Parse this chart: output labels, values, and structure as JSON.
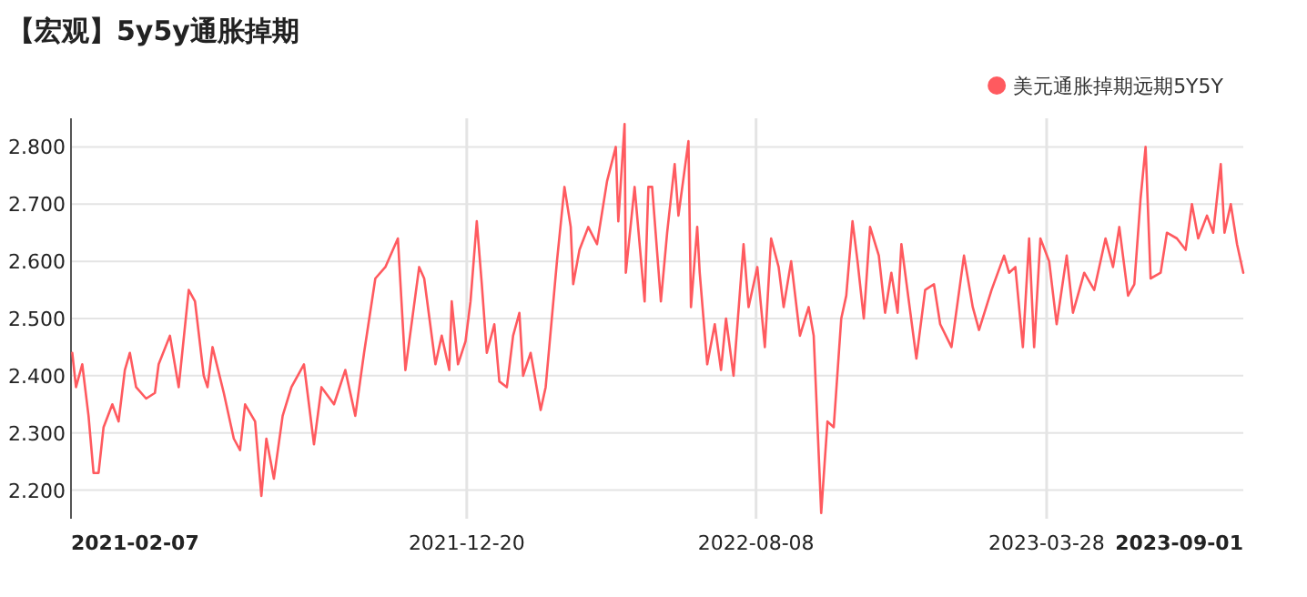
{
  "chart_data": {
    "type": "line",
    "title": "【宏观】5y5y通胀掉期",
    "xlim": [
      "2021-02-07",
      "2023-09-01"
    ],
    "xticks": [
      "2021-02-07",
      "2021-12-20",
      "2022-08-08",
      "2023-03-28",
      "2023-09-01"
    ],
    "ylim": [
      2.15,
      2.85
    ],
    "yticks": [
      {
        "value": 2.2,
        "label": "2.200"
      },
      {
        "value": 2.3,
        "label": "2.300"
      },
      {
        "value": 2.4,
        "label": "2.400"
      },
      {
        "value": 2.5,
        "label": "2.500"
      },
      {
        "value": 2.6,
        "label": "2.600"
      },
      {
        "value": 2.7,
        "label": "2.700"
      },
      {
        "value": 2.8,
        "label": "2.800"
      }
    ],
    "grid": true,
    "legend": "top right",
    "marker": "none",
    "line_style": "solid",
    "series": [
      {
        "name": "美元通胀掉期远期5Y5Y",
        "color": "#ff5a5f",
        "x": [
          "2021-02-08",
          "2021-02-11",
          "2021-02-16",
          "2021-02-21",
          "2021-02-25",
          "2021-03-01",
          "2021-03-05",
          "2021-03-12",
          "2021-03-17",
          "2021-03-22",
          "2021-03-26",
          "2021-03-31",
          "2021-04-08",
          "2021-04-15",
          "2021-04-18",
          "2021-04-27",
          "2021-05-04",
          "2021-05-12",
          "2021-05-17",
          "2021-05-24",
          "2021-05-27",
          "2021-05-31",
          "2021-06-09",
          "2021-06-17",
          "2021-06-22",
          "2021-06-26",
          "2021-07-04",
          "2021-07-09",
          "2021-07-13",
          "2021-07-19",
          "2021-07-26",
          "2021-08-02",
          "2021-08-12",
          "2021-08-20",
          "2021-08-26",
          "2021-09-05",
          "2021-09-14",
          "2021-09-22",
          "2021-09-29",
          "2021-10-08",
          "2021-10-16",
          "2021-10-26",
          "2021-11-01",
          "2021-11-12",
          "2021-11-16",
          "2021-11-25",
          "2021-11-30",
          "2021-12-06",
          "2021-12-08",
          "2021-12-13",
          "2021-12-19",
          "2021-12-23",
          "2021-12-28",
          "2022-01-01",
          "2022-01-05",
          "2022-01-11",
          "2022-01-15",
          "2022-01-21",
          "2022-01-26",
          "2022-01-31",
          "2022-02-03",
          "2022-02-09",
          "2022-02-17",
          "2022-02-21",
          "2022-03-02",
          "2022-03-08",
          "2022-03-13",
          "2022-03-15",
          "2022-03-20",
          "2022-03-27",
          "2022-04-03",
          "2022-04-11",
          "2022-04-18",
          "2022-04-20",
          "2022-04-25",
          "2022-04-26",
          "2022-05-03",
          "2022-05-11",
          "2022-05-14",
          "2022-05-17",
          "2022-05-24",
          "2022-05-29",
          "2022-06-04",
          "2022-06-07",
          "2022-06-15",
          "2022-06-17",
          "2022-06-22",
          "2022-06-24",
          "2022-06-30",
          "2022-07-06",
          "2022-07-11",
          "2022-07-15",
          "2022-07-21",
          "2022-07-29",
          "2022-08-02",
          "2022-08-09",
          "2022-08-15",
          "2022-08-20",
          "2022-08-26",
          "2022-08-30",
          "2022-09-05",
          "2022-09-12",
          "2022-09-19",
          "2022-09-23",
          "2022-09-29",
          "2022-10-04",
          "2022-10-09",
          "2022-10-15",
          "2022-10-19",
          "2022-10-24",
          "2022-10-28",
          "2022-11-02",
          "2022-11-07",
          "2022-11-14",
          "2022-11-19",
          "2022-11-24",
          "2022-11-29",
          "2022-12-02",
          "2022-12-08",
          "2022-12-14",
          "2022-12-21",
          "2022-12-28",
          "2023-01-02",
          "2023-01-11",
          "2023-01-21",
          "2023-01-28",
          "2023-02-02",
          "2023-02-12",
          "2023-02-22",
          "2023-02-26",
          "2023-03-03",
          "2023-03-09",
          "2023-03-14",
          "2023-03-18",
          "2023-03-23",
          "2023-03-30",
          "2023-04-05",
          "2023-04-13",
          "2023-04-18",
          "2023-04-27",
          "2023-05-05",
          "2023-05-14",
          "2023-05-20",
          "2023-05-25",
          "2023-06-01",
          "2023-06-06",
          "2023-06-11",
          "2023-06-15",
          "2023-06-19",
          "2023-06-27",
          "2023-07-02",
          "2023-07-10",
          "2023-07-17",
          "2023-07-22",
          "2023-07-27",
          "2023-08-03",
          "2023-08-08",
          "2023-08-14",
          "2023-08-17",
          "2023-08-22",
          "2023-08-27",
          "2023-09-01"
        ],
        "values": [
          2.44,
          2.38,
          2.42,
          2.33,
          2.23,
          2.23,
          2.31,
          2.35,
          2.32,
          2.41,
          2.44,
          2.38,
          2.36,
          2.37,
          2.42,
          2.47,
          2.38,
          2.55,
          2.53,
          2.4,
          2.38,
          2.45,
          2.37,
          2.29,
          2.27,
          2.35,
          2.32,
          2.19,
          2.29,
          2.22,
          2.33,
          2.38,
          2.42,
          2.28,
          2.38,
          2.35,
          2.41,
          2.33,
          2.44,
          2.57,
          2.59,
          2.64,
          2.41,
          2.59,
          2.57,
          2.42,
          2.47,
          2.41,
          2.53,
          2.42,
          2.46,
          2.53,
          2.67,
          2.56,
          2.44,
          2.49,
          2.39,
          2.38,
          2.47,
          2.51,
          2.4,
          2.44,
          2.34,
          2.38,
          2.6,
          2.73,
          2.66,
          2.56,
          2.62,
          2.66,
          2.63,
          2.74,
          2.8,
          2.67,
          2.84,
          2.58,
          2.73,
          2.53,
          2.73,
          2.73,
          2.53,
          2.65,
          2.77,
          2.68,
          2.81,
          2.52,
          2.66,
          2.58,
          2.42,
          2.49,
          2.41,
          2.5,
          2.4,
          2.63,
          2.52,
          2.59,
          2.45,
          2.64,
          2.59,
          2.52,
          2.6,
          2.47,
          2.52,
          2.47,
          2.16,
          2.32,
          2.31,
          2.5,
          2.54,
          2.67,
          2.6,
          2.5,
          2.66,
          2.61,
          2.51,
          2.58,
          2.51,
          2.63,
          2.53,
          2.43,
          2.55,
          2.56,
          2.49,
          2.45,
          2.61,
          2.52,
          2.48,
          2.55,
          2.61,
          2.58,
          2.59,
          2.45,
          2.64,
          2.45,
          2.64,
          2.6,
          2.49,
          2.61,
          2.51,
          2.58,
          2.55,
          2.64,
          2.59,
          2.66,
          2.54,
          2.56,
          2.71,
          2.8,
          2.57,
          2.58,
          2.65,
          2.64,
          2.62,
          2.7,
          2.64,
          2.68,
          2.65,
          2.77,
          2.65,
          2.7,
          2.63,
          2.58
        ]
      }
    ]
  }
}
